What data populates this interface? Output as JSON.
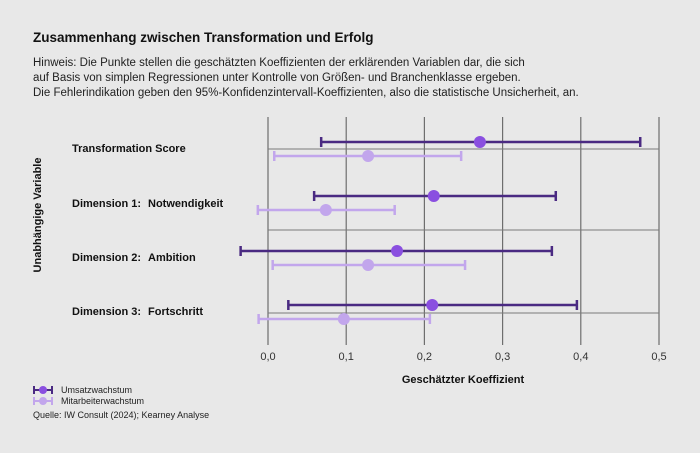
{
  "chart_data": {
    "type": "errorbar",
    "title": "Zusammenhang zwischen Transformation und Erfolg",
    "notes": [
      "Hinweis: Die Punkte stellen die geschätzten Koeffizienten der erklärenden Variablen dar, die sich",
      "auf Basis von simplen Regressionen unter Kontrolle von Größen- und Branchenklasse ergeben.",
      "Die Fehlerindikation geben den 95%-Konfidenzintervall-Koeffizienten, also die statistische Unsicherheit, an."
    ],
    "xlabel": "Geschätzter Koeffizient",
    "ylabel": "Unabhängige Variable",
    "xlim": [
      0.0,
      0.5
    ],
    "xticks": [
      "0,0",
      "0,1",
      "0,2",
      "0,3",
      "0,4",
      "0,5"
    ],
    "categories": [
      {
        "label": "Transformation Score",
        "sub": ""
      },
      {
        "label": "Dimension 1:",
        "sub": "Notwendigkeit"
      },
      {
        "label": "Dimension 2:",
        "sub": "Ambition"
      },
      {
        "label": "Dimension 3:",
        "sub": "Fortschritt"
      }
    ],
    "series": [
      {
        "name": "Umsatzwachstum",
        "line_color": "#4a2a82",
        "dot_color": "#8a4fe0",
        "estimates": [
          0.271,
          0.212,
          0.165,
          0.21
        ],
        "lower": [
          0.068,
          0.059,
          -0.035,
          0.026
        ],
        "upper": [
          0.476,
          0.368,
          0.363,
          0.395
        ]
      },
      {
        "name": "Mitarbeiterwachstum",
        "line_color": "#c2a6ec",
        "dot_color": "#c2a6ec",
        "estimates": [
          0.128,
          0.074,
          0.128,
          0.097
        ],
        "lower": [
          0.008,
          -0.013,
          0.006,
          -0.012
        ],
        "upper": [
          0.247,
          0.162,
          0.252,
          0.207
        ]
      }
    ],
    "grid": true,
    "legend": "bottom-left"
  },
  "source": "Quelle: IW Consult (2024); Kearney Analyse"
}
